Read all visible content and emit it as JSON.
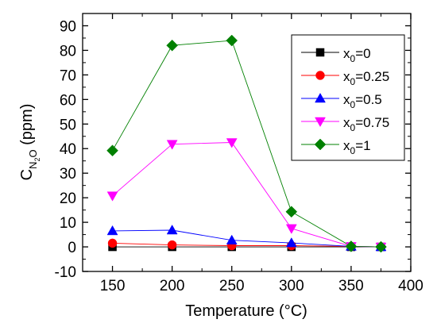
{
  "chart_data": {
    "type": "line",
    "xlabel": "Temperature (°C)",
    "ylabel": {
      "main": "C",
      "sub": "N",
      "subsub": "2",
      "tail": "O",
      "unit": " (ppm)"
    },
    "xlim": [
      125,
      400
    ],
    "ylim": [
      -10,
      95
    ],
    "xticks": [
      150,
      200,
      250,
      300,
      350,
      400
    ],
    "yticks": [
      -10,
      0,
      10,
      20,
      30,
      40,
      50,
      60,
      70,
      80,
      90
    ],
    "x": [
      150,
      200,
      250,
      300,
      350,
      375
    ],
    "grid": false,
    "legend_position": "top-right",
    "series": [
      {
        "name": "x0=0",
        "label": {
          "base": "x",
          "sub": "0",
          "tail": "=0"
        },
        "color": "#000000",
        "marker": "square",
        "values": [
          0,
          0,
          0,
          0,
          0,
          0
        ]
      },
      {
        "name": "x0=0.25",
        "label": {
          "base": "x",
          "sub": "0",
          "tail": "=0.25"
        },
        "color": "#ff0000",
        "marker": "circle",
        "values": [
          1.5,
          0.8,
          0.5,
          0.5,
          0.2,
          0
        ]
      },
      {
        "name": "x0=0.5",
        "label": {
          "base": "x",
          "sub": "0",
          "tail": "=0.5"
        },
        "color": "#0000ff",
        "marker": "triangle-up",
        "values": [
          6.5,
          6.8,
          2.7,
          1.6,
          0.2,
          0
        ]
      },
      {
        "name": "x0=0.75",
        "label": {
          "base": "x",
          "sub": "0",
          "tail": "=0.75"
        },
        "color": "#ff00ff",
        "marker": "triangle-down",
        "values": [
          20.8,
          41.8,
          42.5,
          7.5,
          0.2,
          0
        ]
      },
      {
        "name": "x0=1",
        "label": {
          "base": "x",
          "sub": "0",
          "tail": "=1"
        },
        "color": "#008000",
        "marker": "diamond",
        "values": [
          39.2,
          82,
          84,
          14.3,
          0.2,
          0
        ]
      }
    ]
  }
}
